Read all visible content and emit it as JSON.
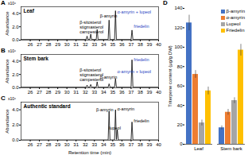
{
  "chart_data": [
    {
      "type": "line",
      "panel": "A",
      "title": "Leaf",
      "y_label": "Abundance",
      "y_unit": "x10⁶",
      "color": "#000000",
      "x": [
        25,
        32.1,
        32.2,
        32.3,
        32.5,
        32.6,
        32.7,
        33.2,
        33.3,
        33.4,
        34.5,
        34.6,
        34.7,
        35.2,
        35.3,
        35.4,
        37.0,
        37.1,
        37.2,
        40
      ],
      "values": [
        0.1,
        0.1,
        0.6,
        0.1,
        0.1,
        0.9,
        0.1,
        0.1,
        1.6,
        0.1,
        0.1,
        3.0,
        0.1,
        0.1,
        4.4,
        0.1,
        0.1,
        1.5,
        0.1,
        0.1
      ],
      "xlim": [
        25,
        40
      ],
      "xticks": [
        26,
        27,
        28,
        29,
        30,
        31,
        32,
        33,
        34,
        35,
        36,
        37,
        38,
        39,
        40
      ],
      "ylim": [
        0,
        5
      ],
      "yticks": [
        0,
        2,
        4
      ],
      "annotations": [
        {
          "text": "β-sitosterol",
          "x": 31.4,
          "y": 2.6,
          "color": "#000000"
        },
        {
          "text": "stigmasterol",
          "x": 31.4,
          "y": 1.9,
          "color": "#000000"
        },
        {
          "text": "campesterol",
          "x": 31.4,
          "y": 1.2,
          "color": "#000000"
        },
        {
          "text": "β-amyrin",
          "x": 33.6,
          "y": 3.6,
          "color": "#000000"
        },
        {
          "text": "α-amyrin + lupeol",
          "x": 35.5,
          "y": 4.2,
          "color": "#1f3fbf"
        },
        {
          "text": "friedelin",
          "x": 37.3,
          "y": 2.0,
          "color": "#1f3fbf"
        }
      ]
    },
    {
      "type": "line",
      "panel": "B",
      "title": "Stem bark",
      "y_label": "Abundance",
      "y_unit": "x10⁶",
      "color": "#000000",
      "x": [
        25,
        32.1,
        32.2,
        32.3,
        32.5,
        32.6,
        32.7,
        33.2,
        33.3,
        33.4,
        34.5,
        34.6,
        34.7,
        35.2,
        35.3,
        35.4,
        37.0,
        37.1,
        37.2,
        40
      ],
      "values": [
        0.1,
        0.1,
        0.4,
        0.1,
        0.1,
        0.5,
        0.1,
        0.1,
        0.9,
        0.1,
        0.1,
        0.6,
        0.1,
        0.1,
        1.4,
        0.1,
        0.1,
        4.2,
        0.1,
        0.1
      ],
      "xlim": [
        25,
        40
      ],
      "xticks": [
        26,
        27,
        28,
        29,
        30,
        31,
        32,
        33,
        34,
        35,
        36,
        37,
        38,
        39,
        40
      ],
      "ylim": [
        0,
        5
      ],
      "yticks": [
        0,
        2,
        4
      ],
      "annotations": [
        {
          "text": "β-sitosterol",
          "x": 31.4,
          "y": 2.6,
          "color": "#000000"
        },
        {
          "text": "stigmasterol",
          "x": 31.4,
          "y": 1.9,
          "color": "#000000"
        },
        {
          "text": "campesterol",
          "x": 31.4,
          "y": 1.2,
          "color": "#000000"
        },
        {
          "text": "β-amyrin",
          "x": 33.6,
          "y": 1.6,
          "color": "#000000"
        },
        {
          "text": "α-amyrin + lupeol",
          "x": 35.5,
          "y": 2.4,
          "color": "#1f3fbf"
        },
        {
          "text": "friedelin",
          "x": 37.3,
          "y": 4.2,
          "color": "#1f3fbf"
        }
      ]
    },
    {
      "type": "line",
      "panel": "C",
      "title": "Authentic standard",
      "y_label": "Abundance",
      "y_unit": "x10⁶",
      "x_label": "Retention time (min)",
      "color": "#000000",
      "x": [
        25,
        34.5,
        34.6,
        34.7,
        35.2,
        35.3,
        35.4,
        35.5,
        35.6,
        37.0,
        37.1,
        37.2,
        40
      ],
      "values": [
        0.05,
        0.05,
        3.8,
        0.05,
        0.05,
        4.0,
        0.1,
        1.4,
        0.05,
        0.05,
        2.4,
        0.05,
        0.05
      ],
      "xlim": [
        25,
        40
      ],
      "xticks": [
        26,
        27,
        28,
        29,
        30,
        31,
        32,
        33,
        34,
        35,
        36,
        37,
        38,
        39,
        40
      ],
      "ylim": [
        0,
        5
      ],
      "yticks": [
        0,
        2,
        4
      ],
      "annotations": [
        {
          "text": "β-amyrin",
          "x": 33.2,
          "y": 4.0,
          "color": "#000000"
        },
        {
          "text": "α-amyrin",
          "x": 35.5,
          "y": 4.1,
          "color": "#000000"
        },
        {
          "text": "lupeol",
          "x": 34.6,
          "y": 1.6,
          "color": "#000000"
        },
        {
          "text": "friedelin",
          "x": 37.3,
          "y": 2.5,
          "color": "#000000"
        }
      ]
    },
    {
      "type": "bar",
      "panel": "D",
      "categories": [
        "Leaf",
        "Stem bark"
      ],
      "y_label": "Triterpene content (μg/g DW)",
      "ylim": [
        0,
        140
      ],
      "yticks": [
        0,
        20,
        40,
        60,
        80,
        100,
        120,
        140
      ],
      "legend": "top-right",
      "series": [
        {
          "name": "β-amyrin",
          "color": "#4472c4",
          "values": [
            125,
            17
          ],
          "errors": [
            8,
            2
          ]
        },
        {
          "name": "α-amyrin",
          "color": "#ed7d31",
          "values": [
            72,
            33
          ],
          "errors": [
            4,
            3
          ]
        },
        {
          "name": "Lupeol",
          "color": "#a5a5a5",
          "values": [
            22,
            45
          ],
          "errors": [
            3,
            3
          ]
        },
        {
          "name": "Friedelin",
          "color": "#ffc000",
          "values": [
            55,
            97
          ],
          "errors": [
            4,
            6
          ]
        }
      ]
    }
  ]
}
